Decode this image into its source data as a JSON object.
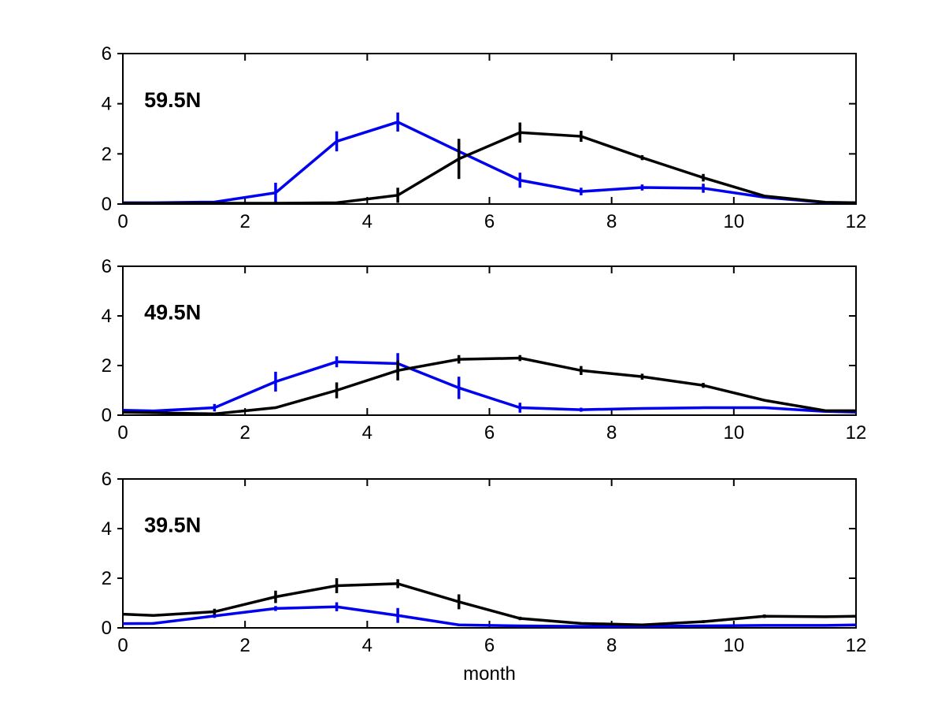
{
  "figure": {
    "background": "#ffffff",
    "xlabel": "month",
    "line_colors": {
      "blue": "#0000ee",
      "black": "#000000"
    }
  },
  "chart_data": [
    {
      "type": "line",
      "panel_label": "59.5N",
      "xlabel": "",
      "ylabel": "",
      "xlim": [
        0,
        12
      ],
      "ylim": [
        0,
        6
      ],
      "xticks": [
        0,
        2,
        4,
        6,
        8,
        10,
        12
      ],
      "yticks": [
        0,
        2,
        4,
        6
      ],
      "grid": false,
      "legend": "none",
      "x": [
        0,
        0.5,
        1.5,
        2.5,
        3.5,
        4.5,
        5.5,
        6.5,
        7.5,
        8.5,
        9.5,
        10.5,
        11.5,
        12
      ],
      "series": [
        {
          "name": "blue-series",
          "color": "#0000ee",
          "values": [
            0.05,
            0.05,
            0.08,
            0.45,
            2.5,
            3.27,
            2.1,
            0.95,
            0.5,
            0.66,
            0.63,
            0.27,
            0.06,
            0.05
          ],
          "err": [
            null,
            null,
            null,
            0.4,
            0.4,
            0.38,
            0.35,
            0.3,
            0.15,
            0.12,
            0.18,
            null,
            null,
            null
          ]
        },
        {
          "name": "black-series",
          "color": "#000000",
          "values": [
            0.03,
            0.03,
            0.03,
            0.03,
            0.05,
            0.35,
            1.8,
            2.85,
            2.7,
            1.85,
            1.05,
            0.32,
            0.07,
            0.05
          ],
          "err": [
            null,
            null,
            null,
            null,
            null,
            0.3,
            0.8,
            0.4,
            0.22,
            0.1,
            0.15,
            null,
            null,
            null
          ]
        }
      ]
    },
    {
      "type": "line",
      "panel_label": "49.5N",
      "xlabel": "",
      "ylabel": "",
      "xlim": [
        0,
        12
      ],
      "ylim": [
        0,
        6
      ],
      "xticks": [
        0,
        2,
        4,
        6,
        8,
        10,
        12
      ],
      "yticks": [
        0,
        2,
        4,
        6
      ],
      "grid": false,
      "legend": "none",
      "x": [
        0,
        0.5,
        1.5,
        2.5,
        3.5,
        4.5,
        5.5,
        6.5,
        7.5,
        8.5,
        9.5,
        10.5,
        11.5,
        12
      ],
      "series": [
        {
          "name": "blue-series",
          "color": "#0000ee",
          "values": [
            0.2,
            0.17,
            0.3,
            1.35,
            2.15,
            2.08,
            1.1,
            0.3,
            0.22,
            0.27,
            0.3,
            0.3,
            0.15,
            0.12
          ],
          "err": [
            null,
            null,
            0.15,
            0.4,
            0.22,
            0.42,
            0.45,
            0.2,
            0.08,
            null,
            null,
            null,
            null,
            null
          ]
        },
        {
          "name": "black-series",
          "color": "#000000",
          "values": [
            0.12,
            0.1,
            0.05,
            0.3,
            1.0,
            1.8,
            2.25,
            2.3,
            1.8,
            1.55,
            1.2,
            0.6,
            0.18,
            0.18
          ],
          "err": [
            null,
            null,
            null,
            null,
            0.32,
            0.4,
            0.17,
            0.12,
            0.18,
            0.12,
            0.1,
            null,
            null,
            null
          ]
        }
      ]
    },
    {
      "type": "line",
      "panel_label": "39.5N",
      "xlabel": "month",
      "ylabel": "",
      "xlim": [
        0,
        12
      ],
      "ylim": [
        0,
        6
      ],
      "xticks": [
        0,
        2,
        4,
        6,
        8,
        10,
        12
      ],
      "yticks": [
        0,
        2,
        4,
        6
      ],
      "grid": false,
      "legend": "none",
      "x": [
        0,
        0.5,
        1.5,
        2.5,
        3.5,
        4.5,
        5.5,
        6.5,
        7.5,
        8.5,
        9.5,
        10.5,
        11.5,
        12
      ],
      "series": [
        {
          "name": "blue-series",
          "color": "#0000ee",
          "values": [
            0.17,
            0.18,
            0.48,
            0.78,
            0.85,
            0.5,
            0.12,
            0.08,
            0.06,
            0.06,
            0.08,
            0.1,
            0.1,
            0.12
          ],
          "err": [
            null,
            0.05,
            0.08,
            0.1,
            0.18,
            0.3,
            0.05,
            null,
            null,
            null,
            null,
            null,
            null,
            null
          ]
        },
        {
          "name": "black-series",
          "color": "#000000",
          "values": [
            0.55,
            0.5,
            0.65,
            1.25,
            1.7,
            1.78,
            1.05,
            0.38,
            0.18,
            0.12,
            0.25,
            0.47,
            0.45,
            0.47
          ],
          "err": [
            null,
            null,
            0.12,
            0.25,
            0.3,
            0.18,
            0.3,
            0.07,
            null,
            null,
            0.06,
            0.07,
            null,
            null
          ]
        }
      ]
    }
  ]
}
